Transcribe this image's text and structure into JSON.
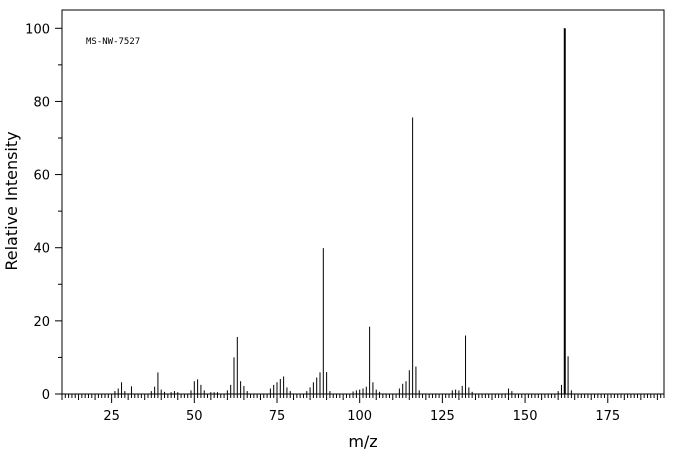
{
  "chart_data": {
    "type": "bar",
    "annotation": "MS-NW-7527",
    "xlabel": "m/z",
    "ylabel": "Relative Intensity",
    "xlim": [
      10,
      192
    ],
    "ylim": [
      0,
      105
    ],
    "x_ticks": [
      25,
      50,
      75,
      100,
      125,
      150,
      175
    ],
    "y_ticks": [
      0,
      20,
      40,
      60,
      80,
      100
    ],
    "grid": false,
    "series": [
      {
        "x": [
          26,
          27,
          28,
          29,
          31,
          37,
          38,
          39,
          40,
          41,
          43,
          44,
          45,
          49,
          50,
          51,
          52,
          53,
          55,
          56,
          57,
          60,
          61,
          62,
          63,
          64,
          65,
          66,
          73,
          74,
          75,
          76,
          77,
          78,
          79,
          84,
          85,
          86,
          87,
          88,
          89,
          90,
          91,
          98,
          99,
          100,
          101,
          102,
          103,
          104,
          105,
          106,
          112,
          113,
          114,
          115,
          116,
          117,
          118,
          128,
          129,
          130,
          131,
          132,
          133,
          134,
          145,
          146,
          160,
          161,
          162,
          163,
          164
        ],
        "y": [
          0.8,
          1.5,
          3.2,
          0.8,
          2.1,
          0.8,
          2.0,
          5.9,
          1.2,
          0.6,
          0.5,
          0.8,
          0.5,
          1.0,
          3.5,
          4.0,
          2.5,
          1.0,
          0.5,
          0.5,
          0.5,
          1.0,
          2.5,
          10.0,
          15.6,
          3.5,
          2.2,
          0.8,
          1.5,
          2.5,
          3.2,
          4.1,
          4.8,
          1.8,
          0.8,
          0.8,
          1.8,
          3.2,
          4.5,
          5.9,
          39.9,
          6.0,
          0.8,
          0.7,
          1.0,
          1.2,
          1.5,
          2.0,
          18.4,
          3.2,
          1.2,
          0.6,
          1.5,
          2.8,
          3.5,
          6.5,
          75.6,
          7.5,
          1.0,
          1.0,
          1.2,
          1.0,
          2.2,
          16.0,
          1.8,
          0.6,
          1.5,
          0.8,
          0.8,
          2.5,
          100.0,
          10.3,
          1.0
        ]
      }
    ]
  }
}
